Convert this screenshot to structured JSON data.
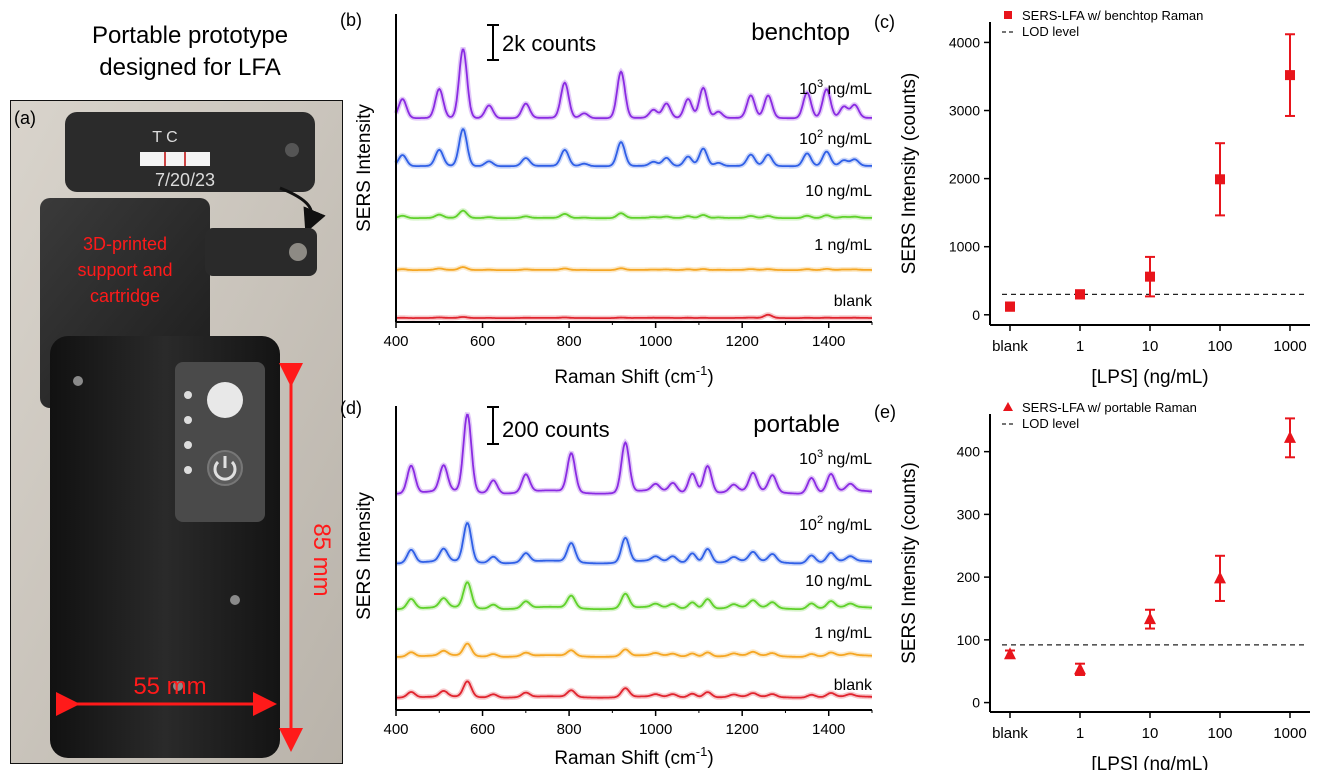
{
  "panel_a": {
    "letter": "(a)",
    "title_line1": "Portable prototype",
    "title_line2": "designed for LFA",
    "strip_text_top": "T C",
    "strip_text_date": "7/20/23",
    "cartridge_label_line1": "3D-printed",
    "cartridge_label_line2": "support and",
    "cartridge_label_line3": "cartridge",
    "height_label": "85 mm",
    "width_label": "55 mm"
  },
  "panel_b": {
    "letter": "(b)",
    "mode_label": "benchtop",
    "scale_bar_label": "2k counts",
    "ylabel": "SERS Intensity",
    "xlabel": "Raman Shift (cm",
    "xlabel_sup": "-1",
    "xlabel_end": ")",
    "xticks": [
      "400",
      "600",
      "800",
      "1000",
      "1200",
      "1400"
    ],
    "trace_labels": [
      {
        "base": "10",
        "sup": "3",
        "unit": " ng/mL"
      },
      {
        "base": "10",
        "sup": "2",
        "unit": " ng/mL"
      },
      {
        "base": "10 ng/mL",
        "sup": "",
        "unit": ""
      },
      {
        "base": "1 ng/mL",
        "sup": "",
        "unit": ""
      },
      {
        "base": "blank",
        "sup": "",
        "unit": ""
      }
    ]
  },
  "panel_d": {
    "letter": "(d)",
    "mode_label": "portable",
    "scale_bar_label": "200 counts",
    "ylabel": "SERS Intensity",
    "xlabel": "Raman Shift (cm",
    "xlabel_sup": "-1",
    "xlabel_end": ")",
    "xticks": [
      "400",
      "600",
      "800",
      "1000",
      "1200",
      "1400"
    ],
    "trace_labels": [
      {
        "base": "10",
        "sup": "3",
        "unit": " ng/mL"
      },
      {
        "base": "10",
        "sup": "2",
        "unit": " ng/mL"
      },
      {
        "base": "10 ng/mL",
        "sup": "",
        "unit": ""
      },
      {
        "base": "1 ng/mL",
        "sup": "",
        "unit": ""
      },
      {
        "base": "blank",
        "sup": "",
        "unit": ""
      }
    ]
  },
  "colors": {
    "c1000": "#8a2be2",
    "c100": "#2f5fe6",
    "c10": "#5fd12a",
    "c1": "#f5a623",
    "blank": "#e0242e",
    "marker": "#e8141b",
    "annotation_red": "#ff1a1a"
  },
  "chart_data": [
    {
      "id": "b",
      "type": "line",
      "title": "",
      "xlabel": "Raman Shift (cm-1)",
      "ylabel": "SERS Intensity",
      "xlim": [
        400,
        1500
      ],
      "scale_bar_counts": 2000,
      "peak_positions": [
        415,
        500,
        555,
        615,
        700,
        790,
        835,
        920,
        995,
        1025,
        1075,
        1110,
        1145,
        1220,
        1260,
        1350,
        1395,
        1435,
        1460
      ],
      "series": [
        {
          "name": "10^3 ng/mL",
          "peak_heights": [
            1200,
            1800,
            4300,
            800,
            900,
            2200,
            300,
            2900,
            500,
            900,
            1200,
            1900,
            400,
            1400,
            1400,
            1600,
            1800,
            700,
            800
          ]
        },
        {
          "name": "10^2 ng/mL",
          "peak_heights": [
            700,
            1000,
            2300,
            300,
            500,
            1000,
            150,
            1500,
            250,
            500,
            600,
            1100,
            200,
            700,
            700,
            800,
            900,
            350,
            400
          ]
        },
        {
          "name": "10 ng/mL",
          "peak_heights": [
            150,
            200,
            450,
            60,
            100,
            250,
            30,
            300,
            50,
            80,
            120,
            200,
            40,
            120,
            120,
            150,
            170,
            60,
            70
          ]
        },
        {
          "name": "1 ng/mL",
          "peak_heights": [
            60,
            90,
            180,
            25,
            40,
            90,
            10,
            110,
            20,
            30,
            50,
            70,
            15,
            50,
            50,
            60,
            70,
            25,
            30
          ]
        },
        {
          "name": "blank",
          "peak_heights": [
            20,
            30,
            60,
            10,
            15,
            30,
            5,
            30,
            10,
            10,
            20,
            20,
            5,
            20,
            200,
            20,
            20,
            10,
            10
          ]
        }
      ]
    },
    {
      "id": "c",
      "type": "scatter",
      "title": "",
      "xlabel": "[LPS] (ng/mL)",
      "ylabel": "SERS Intensity (counts)",
      "categories": [
        "blank",
        "1",
        "10",
        "100",
        "1000"
      ],
      "ylim": [
        -150,
        4300
      ],
      "yticks": [
        0,
        1000,
        2000,
        3000,
        4000
      ],
      "series": [
        {
          "name": "SERS-LFA w/ benchtop Raman",
          "marker": "square",
          "values": [
            120,
            300,
            560,
            1990,
            3520
          ],
          "errors": [
            60,
            60,
            290,
            530,
            600
          ]
        }
      ],
      "reference_line": {
        "name": "LOD level",
        "value": 300,
        "style": "dashed"
      },
      "legend": "top-left"
    },
    {
      "id": "d",
      "type": "line",
      "title": "",
      "xlabel": "Raman Shift (cm-1)",
      "ylabel": "SERS Intensity",
      "xlim": [
        400,
        1500
      ],
      "scale_bar_counts": 200,
      "peak_positions": [
        435,
        510,
        565,
        625,
        700,
        805,
        930,
        1000,
        1040,
        1085,
        1120,
        1180,
        1225,
        1270,
        1360,
        1405,
        1450
      ],
      "series": [
        {
          "name": "10^3 ng/mL",
          "peak_heights": [
            250,
            230,
            700,
            120,
            160,
            350,
            450,
            60,
            80,
            180,
            250,
            60,
            160,
            150,
            140,
            160,
            60
          ]
        },
        {
          "name": "10^2 ng/mL",
          "peak_heights": [
            120,
            110,
            350,
            60,
            80,
            170,
            220,
            40,
            50,
            90,
            130,
            40,
            80,
            70,
            70,
            80,
            40
          ]
        },
        {
          "name": "10 ng/mL",
          "peak_heights": [
            90,
            80,
            230,
            40,
            60,
            110,
            130,
            30,
            35,
            60,
            90,
            30,
            60,
            50,
            50,
            60,
            30
          ]
        },
        {
          "name": "1 ng/mL",
          "peak_heights": [
            40,
            40,
            110,
            25,
            30,
            50,
            60,
            20,
            20,
            30,
            40,
            20,
            30,
            25,
            25,
            30,
            15
          ]
        },
        {
          "name": "blank",
          "peak_heights": [
            50,
            50,
            140,
            30,
            40,
            60,
            80,
            20,
            25,
            35,
            50,
            20,
            30,
            25,
            25,
            35,
            20
          ]
        }
      ]
    },
    {
      "id": "e",
      "type": "scatter",
      "title": "",
      "xlabel": "[LPS] (ng/mL)",
      "ylabel": "SERS Intensity (counts)",
      "categories": [
        "blank",
        "1",
        "10",
        "100",
        "1000"
      ],
      "ylim": [
        -15,
        460
      ],
      "yticks": [
        0,
        100,
        200,
        300,
        400
      ],
      "series": [
        {
          "name": "SERS-LFA w/ portable Raman",
          "marker": "triangle",
          "values": [
            77,
            53,
            133,
            198,
            422
          ],
          "errors": [
            6,
            9,
            15,
            36,
            31
          ]
        }
      ],
      "reference_line": {
        "name": "LOD level",
        "value": 92,
        "style": "dashed"
      },
      "legend": "top-left"
    }
  ]
}
